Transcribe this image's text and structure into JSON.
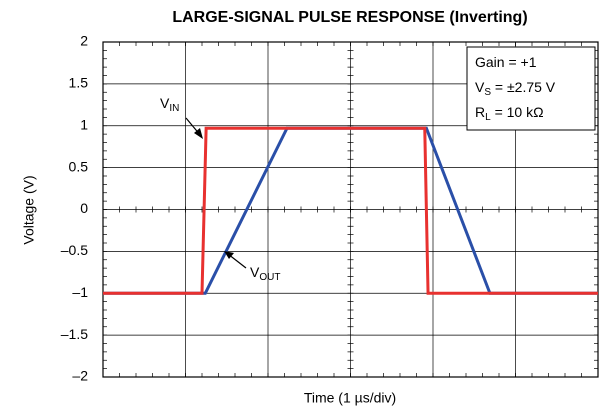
{
  "chart_data": {
    "type": "line",
    "title": "LARGE-SIGNAL PULSE RESPONSE (Inverting)",
    "xlabel": "Time (1 µs/div)",
    "ylabel": "Voltage (V)",
    "xlim": [
      0,
      6
    ],
    "xticks": [
      0,
      1,
      2,
      3,
      4,
      5,
      6
    ],
    "ylim": [
      -2,
      2
    ],
    "yticks": [
      {
        "value": -2,
        "label": "–2"
      },
      {
        "value": -1.5,
        "label": "–1.5"
      },
      {
        "value": -1,
        "label": "–1"
      },
      {
        "value": -0.5,
        "label": "–0.5"
      },
      0,
      0.5,
      1,
      1.5,
      2
    ],
    "grid": true,
    "series": [
      {
        "name": {
          "base": "V",
          "sub": "OUT"
        },
        "color": "#2a4fa8",
        "x": [
          0,
          1.24,
          2.23,
          3.92,
          4.69,
          6
        ],
        "values": [
          -1,
          -1,
          0.97,
          0.97,
          -1,
          -1
        ]
      },
      {
        "name": {
          "base": "V",
          "sub": "IN"
        },
        "color": "#e8312f",
        "x": [
          0,
          1.2,
          1.25,
          3.9,
          3.94,
          6
        ],
        "values": [
          -1,
          -1,
          0.97,
          0.97,
          -1,
          -1
        ]
      }
    ],
    "conditions": [
      {
        "base": "Gain = +1",
        "sub": "",
        "rest": ""
      },
      {
        "base": "V",
        "sub": "S",
        "rest": " = ±2.75 V"
      },
      {
        "base": "R",
        "sub": "L",
        "rest": " = 10 kΩ"
      }
    ]
  }
}
